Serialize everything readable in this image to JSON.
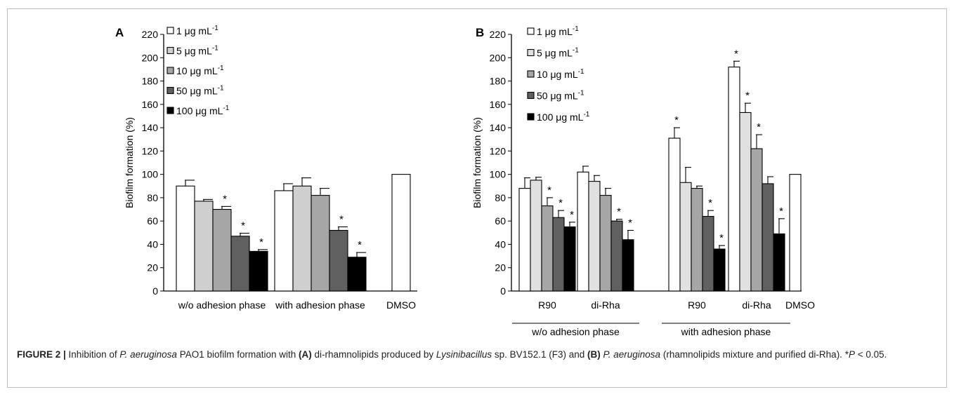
{
  "figure": {
    "caption": {
      "label": "FIGURE 2 |",
      "t1": " Inhibition of ",
      "t2": "P. aeruginosa",
      "t3": " PAO1 biofilm formation with ",
      "t4": "(A)",
      "t5": " di-rhamnolipids produced by ",
      "t6": "Lysinibacillus",
      "t7": " sp. BV152.1 (F3) and ",
      "t8": "(B)",
      "t9": " ",
      "t10": "P. aeruginosa",
      "t11": " (rhamnolipids mixture and purified di-Rha). *",
      "t12": "P",
      "t13": " < 0.05."
    }
  },
  "chart_data": [
    {
      "type": "bar",
      "panel": "A",
      "ylabel": "Biofilm formation (%)",
      "ylim": [
        0,
        220
      ],
      "yticks": [
        0,
        20,
        40,
        60,
        80,
        100,
        120,
        140,
        160,
        180,
        200,
        220
      ],
      "legend_position": "top-left",
      "series": [
        {
          "name": "1 μg mL",
          "superscript": "-1",
          "color": "#ffffff"
        },
        {
          "name": "5 μg mL",
          "superscript": "-1",
          "color": "#cfcfcf"
        },
        {
          "name": "10 μg mL",
          "superscript": "-1",
          "color": "#a6a6a6"
        },
        {
          "name": "50 μg mL",
          "superscript": "-1",
          "color": "#606060"
        },
        {
          "name": "100 μg mL",
          "superscript": "-1",
          "color": "#000000"
        }
      ],
      "groups": [
        {
          "label": "w/o adhesion phase",
          "values": [
            90,
            77,
            70,
            47,
            34
          ],
          "errors": [
            5,
            1.5,
            2.5,
            2.5,
            1.5
          ],
          "significant": [
            false,
            false,
            true,
            true,
            true
          ]
        },
        {
          "label": "with adhesion phase",
          "values": [
            86,
            90,
            82,
            52,
            29
          ],
          "errors": [
            6,
            7,
            6,
            3,
            4
          ],
          "significant": [
            false,
            false,
            false,
            true,
            true
          ]
        }
      ],
      "control": {
        "label": "DMSO",
        "value": 100
      }
    },
    {
      "type": "bar",
      "panel": "B",
      "ylabel": "Biofilm formation (%)",
      "ylim": [
        0,
        220
      ],
      "yticks": [
        0,
        20,
        40,
        60,
        80,
        100,
        120,
        140,
        160,
        180,
        200,
        220
      ],
      "legend_position": "top-left",
      "series": [
        {
          "name": "1 μg mL",
          "superscript": "-1",
          "color": "#ffffff"
        },
        {
          "name": "5 μg mL",
          "superscript": "-1",
          "color": "#e0e0e0"
        },
        {
          "name": "10 μg mL",
          "superscript": "-1",
          "color": "#a6a6a6"
        },
        {
          "name": "50 μg mL",
          "superscript": "-1",
          "color": "#606060"
        },
        {
          "name": "100 μg mL",
          "superscript": "-1",
          "color": "#000000"
        }
      ],
      "groups": [
        {
          "label": "R90",
          "values": [
            88,
            95,
            73,
            63,
            55
          ],
          "errors": [
            9,
            2.5,
            7,
            6,
            4
          ],
          "significant": [
            false,
            false,
            true,
            true,
            true
          ]
        },
        {
          "label": "di-Rha",
          "values": [
            102,
            94,
            82,
            60,
            44
          ],
          "errors": [
            5,
            5,
            6,
            1.5,
            8
          ],
          "significant": [
            false,
            false,
            false,
            true,
            true
          ]
        },
        {
          "label": "R90",
          "values": [
            131,
            93,
            88,
            64,
            36
          ],
          "errors": [
            9,
            13,
            2,
            5,
            3
          ],
          "significant": [
            true,
            false,
            false,
            true,
            true
          ]
        },
        {
          "label": "di-Rha",
          "values": [
            192,
            153,
            122,
            92,
            49
          ],
          "errors": [
            5,
            8,
            12,
            6,
            13
          ],
          "significant": [
            true,
            true,
            true,
            false,
            true
          ]
        }
      ],
      "control": {
        "label": "DMSO",
        "value": 100
      },
      "supergroups": [
        {
          "label": "w/o adhesion phase",
          "groups": [
            0,
            1
          ]
        },
        {
          "label": "with adhesion phase",
          "groups": [
            2,
            3
          ]
        }
      ]
    }
  ]
}
